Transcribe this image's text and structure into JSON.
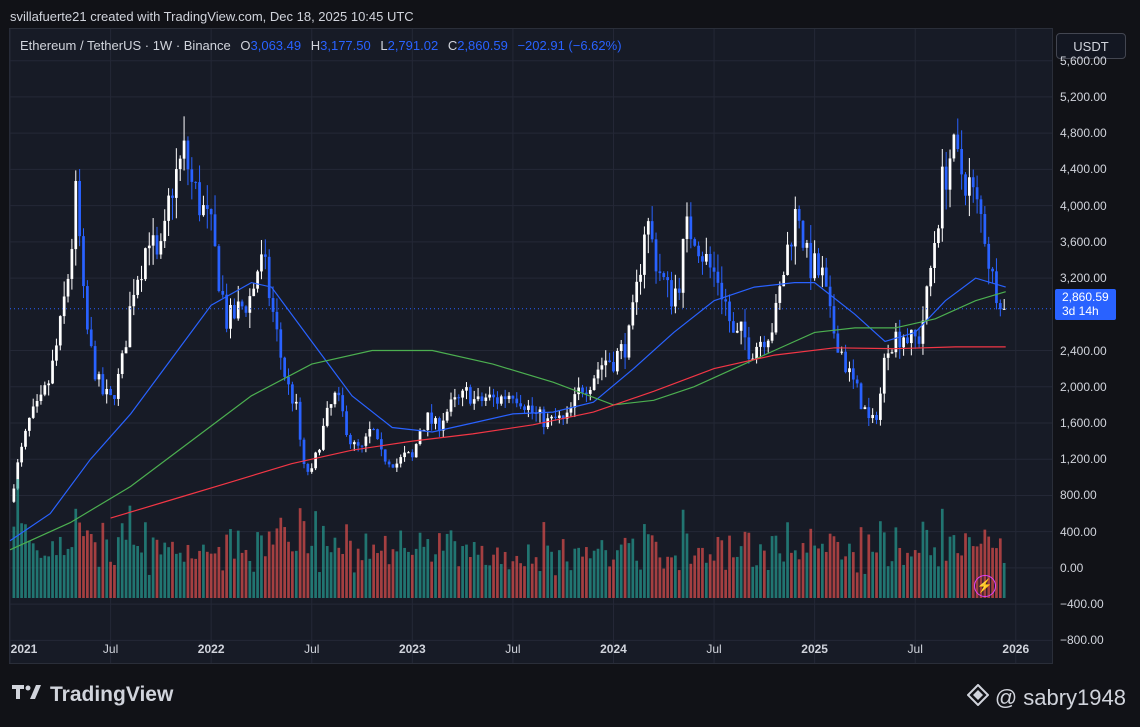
{
  "header": {
    "created_text": "svillafuerte21 created with TradingView.com, Dec 18, 2025 10:45 UTC"
  },
  "legend": {
    "symbol": "Ethereum / TetherUS · 1W · Binance",
    "o_key": "O",
    "o_val": "3,063.49",
    "h_key": "H",
    "h_val": "3,177.50",
    "l_key": "L",
    "l_val": "2,791.02",
    "c_key": "C",
    "c_val": "2,860.59",
    "change": "−202.91 (−6.62%)"
  },
  "currency_button": "USDT",
  "price_label": {
    "price": "2,860.59",
    "countdown": "3d 14h"
  },
  "footer": {
    "brand": "TradingView",
    "handle": "@ sabry1948"
  },
  "colors": {
    "up": "#ffffff",
    "down": "#2962ff",
    "ma_blue": "#2962ff",
    "ma_green": "#4caf50",
    "ma_red": "#f23645",
    "vol_up": "#26a69a",
    "vol_down": "#ef5350"
  },
  "chart_data": {
    "type": "candlestick",
    "title": "Ethereum / TetherUS · 1W · Binance",
    "y_ticks": [
      "5,600.00",
      "5,200.00",
      "4,800.00",
      "4,400.00",
      "4,000.00",
      "3,600.00",
      "3,200.00",
      "2,400.00",
      "2,000.00",
      "1,600.00",
      "1,200.00",
      "800.00",
      "400.00",
      "0.00",
      "−400.00",
      "−800.00"
    ],
    "y_tick_values": [
      5600,
      5200,
      4800,
      4400,
      4000,
      3600,
      3200,
      2400,
      2000,
      1600,
      1200,
      800,
      400,
      0,
      -400,
      -800
    ],
    "x_ticks": [
      "2021",
      "Jul",
      "2022",
      "Jul",
      "2023",
      "Jul",
      "2024",
      "Jul",
      "2025",
      "Jul",
      "2026"
    ],
    "x_tick_years": [
      2021,
      2021.5,
      2022,
      2022.5,
      2023,
      2023.5,
      2024,
      2024.5,
      2025,
      2025.5,
      2026
    ],
    "x_range": [
      2021.0,
      2026.18
    ],
    "ylim": [
      -1050,
      5950
    ],
    "current_price": 2860.59,
    "price_path": [
      [
        2021.0,
        730
      ],
      [
        2021.04,
        1150
      ],
      [
        2021.1,
        1650
      ],
      [
        2021.15,
        1800
      ],
      [
        2021.2,
        2100
      ],
      [
        2021.25,
        2650
      ],
      [
        2021.3,
        3400
      ],
      [
        2021.33,
        4150
      ],
      [
        2021.37,
        2800
      ],
      [
        2021.4,
        2400
      ],
      [
        2021.45,
        1950
      ],
      [
        2021.5,
        1850
      ],
      [
        2021.55,
        2150
      ],
      [
        2021.58,
        2600
      ],
      [
        2021.62,
        3200
      ],
      [
        2021.66,
        3400
      ],
      [
        2021.7,
        3800
      ],
      [
        2021.72,
        3300
      ],
      [
        2021.76,
        3500
      ],
      [
        2021.8,
        4200
      ],
      [
        2021.84,
        4400
      ],
      [
        2021.87,
        4600
      ],
      [
        2021.9,
        4250
      ],
      [
        2021.95,
        4000
      ],
      [
        2022.0,
        3700
      ],
      [
        2022.04,
        3200
      ],
      [
        2022.08,
        2700
      ],
      [
        2022.12,
        2800
      ],
      [
        2022.16,
        2900
      ],
      [
        2022.2,
        3000
      ],
      [
        2022.24,
        3400
      ],
      [
        2022.27,
        3250
      ],
      [
        2022.3,
        2900
      ],
      [
        2022.34,
        2400
      ],
      [
        2022.38,
        2000
      ],
      [
        2022.42,
        1800
      ],
      [
        2022.46,
        1100
      ],
      [
        2022.5,
        1050
      ],
      [
        2022.54,
        1400
      ],
      [
        2022.58,
        1700
      ],
      [
        2022.62,
        1900
      ],
      [
        2022.66,
        1650
      ],
      [
        2022.7,
        1350
      ],
      [
        2022.75,
        1300
      ],
      [
        2022.8,
        1550
      ],
      [
        2022.84,
        1250
      ],
      [
        2022.88,
        1200
      ],
      [
        2022.92,
        1150
      ],
      [
        2022.97,
        1250
      ],
      [
        2023.0,
        1200
      ],
      [
        2023.04,
        1550
      ],
      [
        2023.08,
        1650
      ],
      [
        2023.12,
        1550
      ],
      [
        2023.16,
        1700
      ],
      [
        2023.2,
        1800
      ],
      [
        2023.24,
        1850
      ],
      [
        2023.28,
        1950
      ],
      [
        2023.32,
        1800
      ],
      [
        2023.36,
        1880
      ],
      [
        2023.42,
        1850
      ],
      [
        2023.46,
        1900
      ],
      [
        2023.5,
        1950
      ],
      [
        2023.55,
        1850
      ],
      [
        2023.6,
        1700
      ],
      [
        2023.64,
        1650
      ],
      [
        2023.68,
        1600
      ],
      [
        2023.72,
        1650
      ],
      [
        2023.76,
        1600
      ],
      [
        2023.8,
        1800
      ],
      [
        2023.84,
        2000
      ],
      [
        2023.88,
        2050
      ],
      [
        2023.92,
        2200
      ],
      [
        2023.96,
        2300
      ],
      [
        2024.0,
        2300
      ],
      [
        2024.04,
        2400
      ],
      [
        2024.08,
        2550
      ],
      [
        2024.12,
        3100
      ],
      [
        2024.16,
        3900
      ],
      [
        2024.2,
        3500
      ],
      [
        2024.24,
        3200
      ],
      [
        2024.28,
        3000
      ],
      [
        2024.32,
        3100
      ],
      [
        2024.36,
        3700
      ],
      [
        2024.4,
        3750
      ],
      [
        2024.44,
        3500
      ],
      [
        2024.48,
        3300
      ],
      [
        2024.52,
        3200
      ],
      [
        2024.56,
        2900
      ],
      [
        2024.6,
        2500
      ],
      [
        2024.64,
        2600
      ],
      [
        2024.68,
        2400
      ],
      [
        2024.72,
        2500
      ],
      [
        2024.76,
        2600
      ],
      [
        2024.8,
        2700
      ],
      [
        2024.84,
        3200
      ],
      [
        2024.88,
        3700
      ],
      [
        2024.92,
        4000
      ],
      [
        2024.96,
        3400
      ],
      [
        2025.0,
        3300
      ],
      [
        2025.04,
        3200
      ],
      [
        2025.08,
        2700
      ],
      [
        2025.12,
        2500
      ],
      [
        2025.16,
        2200
      ],
      [
        2025.2,
        2000
      ],
      [
        2025.24,
        1800
      ],
      [
        2025.28,
        1550
      ],
      [
        2025.32,
        1800
      ],
      [
        2025.36,
        2500
      ],
      [
        2025.4,
        2550
      ],
      [
        2025.44,
        2600
      ],
      [
        2025.48,
        2500
      ],
      [
        2025.52,
        2550
      ],
      [
        2025.56,
        3000
      ],
      [
        2025.6,
        3700
      ],
      [
        2025.64,
        4300
      ],
      [
        2025.68,
        4600
      ],
      [
        2025.72,
        4400
      ],
      [
        2025.76,
        4300
      ],
      [
        2025.8,
        4000
      ],
      [
        2025.84,
        3800
      ],
      [
        2025.88,
        3200
      ],
      [
        2025.92,
        3050
      ],
      [
        2025.95,
        2860.59
      ]
    ],
    "ma_series": [
      {
        "color_key": "ma_blue",
        "points": [
          [
            2021.0,
            300
          ],
          [
            2021.2,
            600
          ],
          [
            2021.4,
            1200
          ],
          [
            2021.6,
            1700
          ],
          [
            2021.8,
            2300
          ],
          [
            2022.0,
            2900
          ],
          [
            2022.2,
            3150
          ],
          [
            2022.3,
            3100
          ],
          [
            2022.5,
            2500
          ],
          [
            2022.7,
            1900
          ],
          [
            2022.9,
            1550
          ],
          [
            2023.1,
            1500
          ],
          [
            2023.3,
            1600
          ],
          [
            2023.5,
            1700
          ],
          [
            2023.7,
            1720
          ],
          [
            2023.9,
            1830
          ],
          [
            2024.1,
            2200
          ],
          [
            2024.3,
            2600
          ],
          [
            2024.5,
            2950
          ],
          [
            2024.7,
            3100
          ],
          [
            2024.9,
            3150
          ],
          [
            2025.0,
            3150
          ],
          [
            2025.2,
            2800
          ],
          [
            2025.35,
            2500
          ],
          [
            2025.5,
            2600
          ],
          [
            2025.65,
            2950
          ],
          [
            2025.8,
            3200
          ],
          [
            2025.95,
            3100
          ]
        ]
      },
      {
        "color_key": "ma_green",
        "points": [
          [
            2021.0,
            200
          ],
          [
            2021.3,
            500
          ],
          [
            2021.6,
            900
          ],
          [
            2021.9,
            1400
          ],
          [
            2022.2,
            1900
          ],
          [
            2022.5,
            2250
          ],
          [
            2022.8,
            2400
          ],
          [
            2023.1,
            2400
          ],
          [
            2023.4,
            2250
          ],
          [
            2023.7,
            2050
          ],
          [
            2024.0,
            1800
          ],
          [
            2024.2,
            1850
          ],
          [
            2024.4,
            2000
          ],
          [
            2024.6,
            2200
          ],
          [
            2024.8,
            2400
          ],
          [
            2025.0,
            2600
          ],
          [
            2025.2,
            2650
          ],
          [
            2025.4,
            2650
          ],
          [
            2025.6,
            2750
          ],
          [
            2025.8,
            2950
          ],
          [
            2025.95,
            3050
          ]
        ]
      },
      {
        "color_key": "ma_red",
        "points": [
          [
            2021.5,
            550
          ],
          [
            2021.8,
            750
          ],
          [
            2022.1,
            950
          ],
          [
            2022.4,
            1150
          ],
          [
            2022.7,
            1300
          ],
          [
            2023.0,
            1400
          ],
          [
            2023.3,
            1480
          ],
          [
            2023.6,
            1580
          ],
          [
            2023.9,
            1720
          ],
          [
            2024.2,
            1950
          ],
          [
            2024.5,
            2200
          ],
          [
            2024.8,
            2350
          ],
          [
            2025.1,
            2430
          ],
          [
            2025.4,
            2420
          ],
          [
            2025.7,
            2440
          ],
          [
            2025.95,
            2440
          ]
        ]
      }
    ]
  }
}
